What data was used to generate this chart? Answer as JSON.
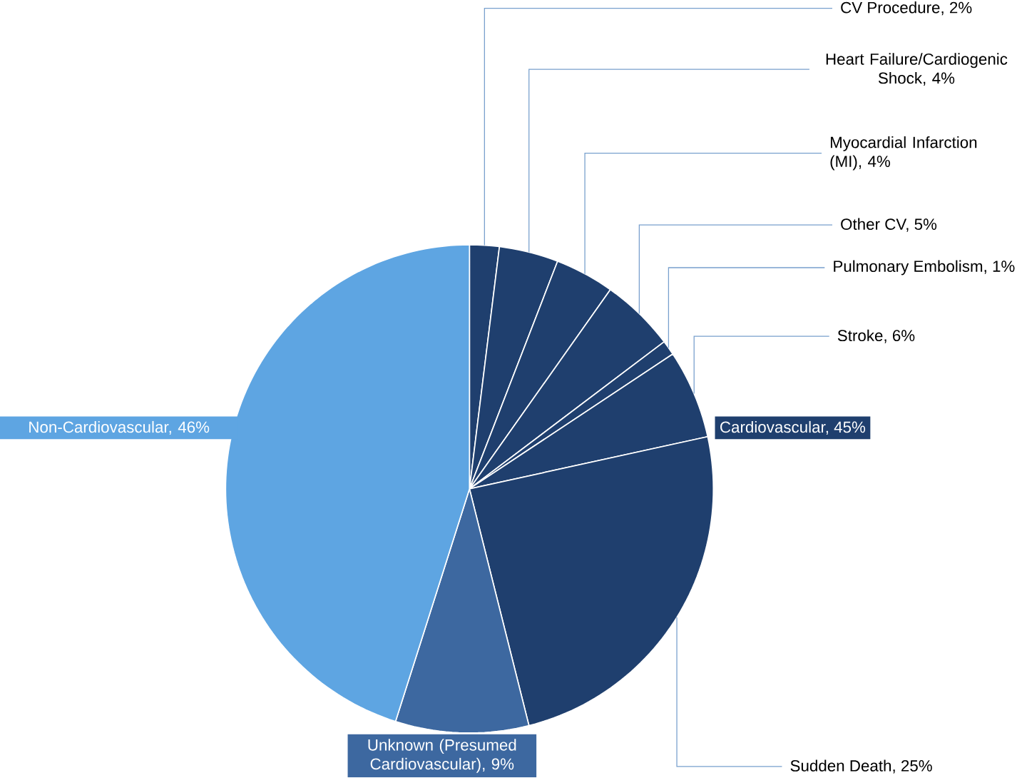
{
  "chart_data": {
    "type": "pie",
    "categories": [
      "CV Procedure, 2%",
      "Heart Failure/Cardiogenic Shock, 4%",
      "Myocardial Infarction (MI), 4%",
      "Other CV, 5%",
      "Pulmonary Embolism, 1%",
      "Stroke, 6%",
      "Sudden Death, 25%",
      "Unknown (Presumed Cardiovascular), 9%",
      "Non-Cardiovascular, 46%"
    ],
    "values": [
      2,
      4,
      4,
      5,
      1,
      6,
      25,
      9,
      46
    ],
    "colors": [
      "#1f3f6e",
      "#1f3f6e",
      "#1f3f6e",
      "#1f3f6e",
      "#1f3f6e",
      "#1f3f6e",
      "#1f3f6e",
      "#3d68a0",
      "#5ea5e2"
    ],
    "annotations": [
      "Cardiovascular, 45%"
    ]
  }
}
